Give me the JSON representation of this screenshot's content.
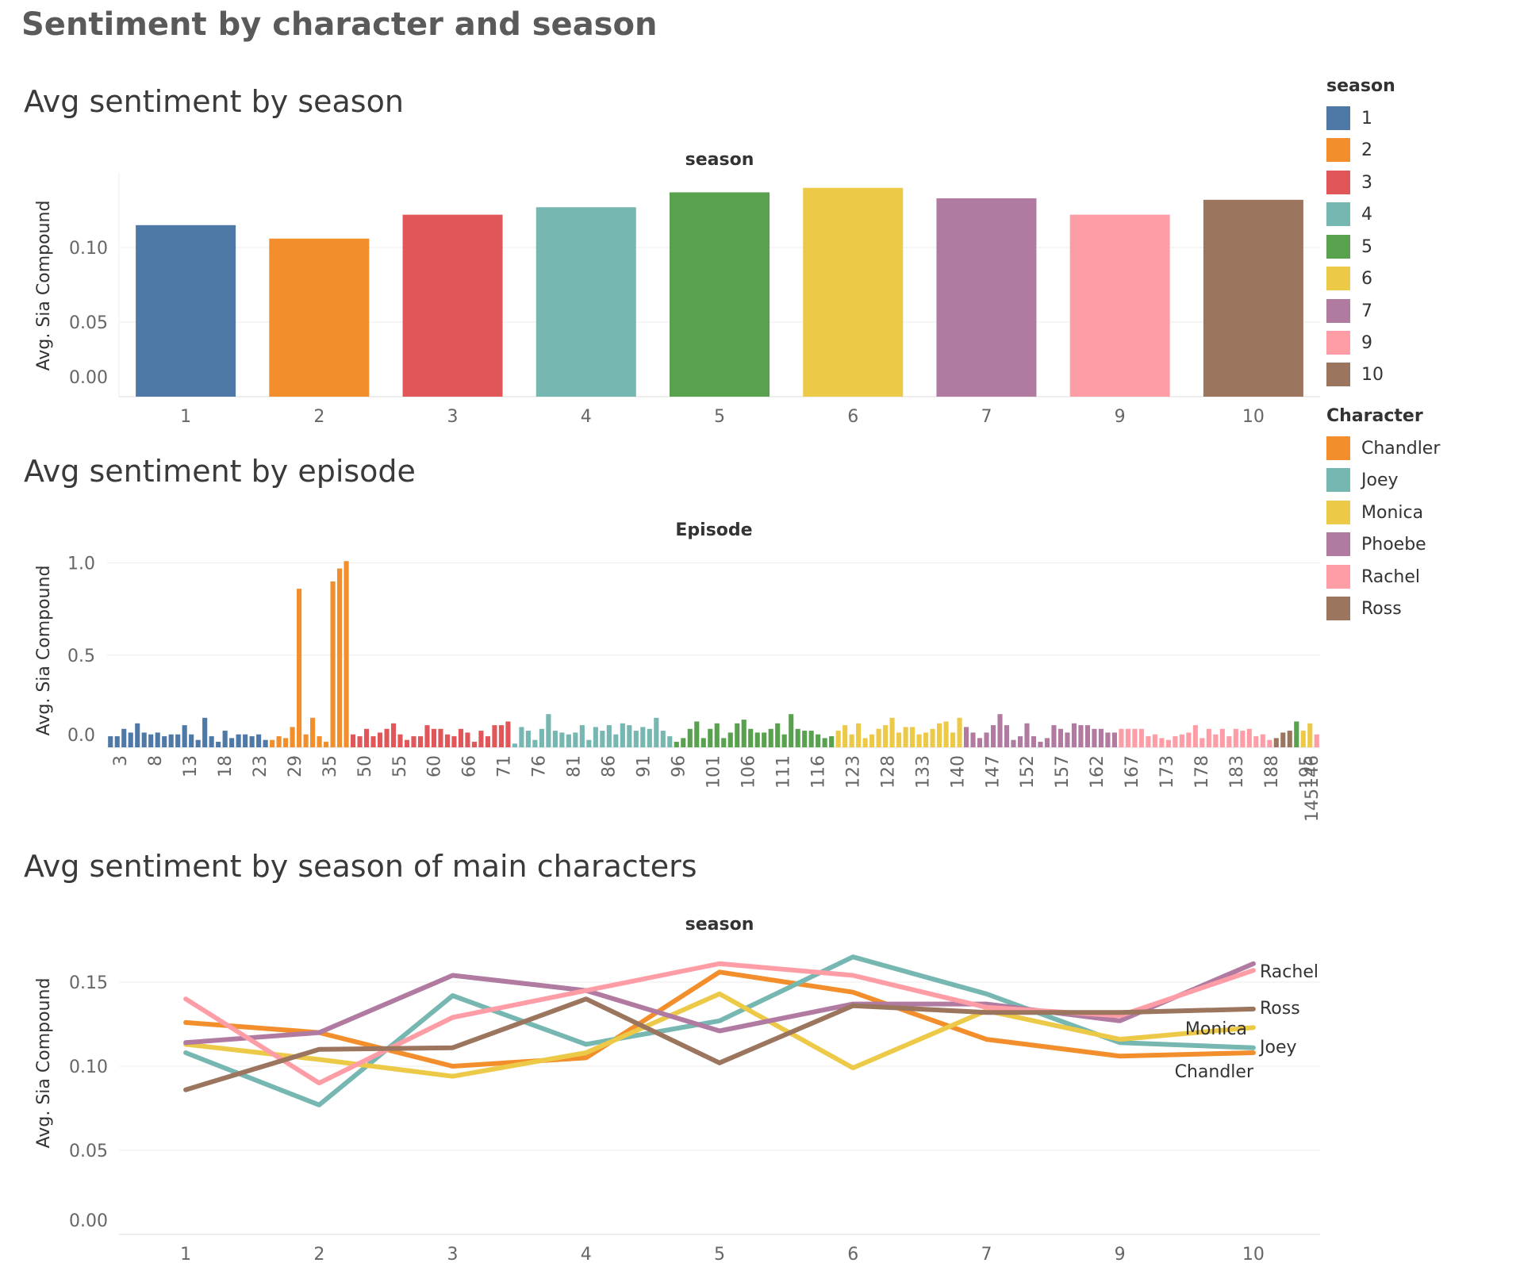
{
  "page": {
    "title": "Sentiment by character and season"
  },
  "legends": {
    "season": {
      "title": "season",
      "items": [
        {
          "label": "1",
          "color": "#4e79a7"
        },
        {
          "label": "2",
          "color": "#f28e2b"
        },
        {
          "label": "3",
          "color": "#e15759"
        },
        {
          "label": "4",
          "color": "#76b7b2"
        },
        {
          "label": "5",
          "color": "#59a14f"
        },
        {
          "label": "6",
          "color": "#edc948"
        },
        {
          "label": "7",
          "color": "#b07aa1"
        },
        {
          "label": "9",
          "color": "#ff9da7"
        },
        {
          "label": "10",
          "color": "#9c755f"
        }
      ]
    },
    "character": {
      "title": "Character",
      "items": [
        {
          "label": "Chandler",
          "color": "#f28e2b"
        },
        {
          "label": "Joey",
          "color": "#76b7b2"
        },
        {
          "label": "Monica",
          "color": "#edc948"
        },
        {
          "label": "Phoebe",
          "color": "#b07aa1"
        },
        {
          "label": "Rachel",
          "color": "#ff9da7"
        },
        {
          "label": "Ross",
          "color": "#9c755f"
        }
      ]
    }
  },
  "chart_data": [
    {
      "type": "bar",
      "title": "Avg sentiment by season",
      "header": "season",
      "ylabel": "Avg. Sia Compound",
      "ylim": [
        0,
        0.15
      ],
      "yticks": [
        "0.00",
        "0.05",
        "0.10"
      ],
      "categories": [
        "1",
        "2",
        "3",
        "4",
        "5",
        "6",
        "7",
        "9",
        "10"
      ],
      "values": [
        0.115,
        0.106,
        0.122,
        0.127,
        0.137,
        0.14,
        0.133,
        0.122,
        0.132
      ],
      "colors": [
        "#4e79a7",
        "#f28e2b",
        "#e15759",
        "#76b7b2",
        "#59a14f",
        "#edc948",
        "#b07aa1",
        "#ff9da7",
        "#9c755f"
      ]
    },
    {
      "type": "bar",
      "title": "Avg sentiment by episode",
      "header": "Episode",
      "ylabel": "Avg. Sia Compound",
      "ylim": [
        0,
        1.05
      ],
      "yticks": [
        "0.0",
        "0.5",
        "1.0"
      ],
      "tick_labels": [
        "3",
        "8",
        "13",
        "18",
        "23",
        "29",
        "35",
        "50",
        "55",
        "60",
        "66",
        "71",
        "76",
        "81",
        "86",
        "91",
        "96",
        "101",
        "106",
        "111",
        "116",
        "123",
        "128",
        "133",
        "140",
        "147",
        "152",
        "157",
        "162",
        "167",
        "173",
        "178",
        "183",
        "188",
        "195",
        "145146"
      ],
      "groups": [
        {
          "season": "1",
          "color": "#4e79a7",
          "values": [
            0.06,
            0.06,
            0.1,
            0.08,
            0.13,
            0.08,
            0.07,
            0.08,
            0.06,
            0.07,
            0.07,
            0.12,
            0.07,
            0.04,
            0.16,
            0.06,
            0.03,
            0.09,
            0.05,
            0.07,
            0.07,
            0.06,
            0.07,
            0.04
          ]
        },
        {
          "season": "2",
          "color": "#f28e2b",
          "values": [
            0.04,
            0.06,
            0.05,
            0.11,
            0.86,
            0.07,
            0.16,
            0.06,
            0.03,
            0.9,
            0.97,
            1.01
          ]
        },
        {
          "season": "3",
          "color": "#e15759",
          "values": [
            0.07,
            0.06,
            0.1,
            0.06,
            0.08,
            0.1,
            0.13,
            0.07,
            0.04,
            0.06,
            0.06,
            0.12,
            0.1,
            0.1,
            0.07,
            0.06,
            0.1,
            0.08,
            0.03,
            0.09,
            0.06,
            0.12,
            0.12,
            0.14
          ]
        },
        {
          "season": "4",
          "color": "#76b7b2",
          "values": [
            0.02,
            0.11,
            0.09,
            0.04,
            0.1,
            0.18,
            0.09,
            0.08,
            0.07,
            0.08,
            0.12,
            0.04,
            0.11,
            0.09,
            0.12,
            0.07,
            0.13,
            0.12,
            0.09,
            0.11,
            0.1,
            0.16,
            0.09,
            0.06
          ]
        },
        {
          "season": "5",
          "color": "#59a14f",
          "values": [
            0.03,
            0.05,
            0.1,
            0.14,
            0.05,
            0.1,
            0.13,
            0.05,
            0.08,
            0.13,
            0.15,
            0.1,
            0.08,
            0.08,
            0.1,
            0.13,
            0.07,
            0.18,
            0.1,
            0.09,
            0.09,
            0.07,
            0.05,
            0.06
          ]
        },
        {
          "season": "6",
          "color": "#edc948",
          "values": [
            0.09,
            0.12,
            0.07,
            0.13,
            0.05,
            0.07,
            0.1,
            0.12,
            0.16,
            0.08,
            0.11,
            0.11,
            0.07,
            0.08,
            0.1,
            0.13,
            0.14,
            0.08,
            0.16
          ]
        },
        {
          "season": "7",
          "color": "#b07aa1",
          "values": [
            0.11,
            0.08,
            0.05,
            0.08,
            0.12,
            0.18,
            0.12,
            0.04,
            0.06,
            0.13,
            0.06,
            0.03,
            0.05,
            0.12,
            0.1,
            0.08,
            0.13,
            0.12,
            0.12,
            0.1,
            0.1,
            0.08,
            0.08
          ]
        },
        {
          "season": "9",
          "color": "#ff9da7",
          "values": [
            0.1,
            0.1,
            0.1,
            0.1,
            0.06,
            0.07,
            0.05,
            0.04,
            0.06,
            0.07,
            0.08,
            0.12,
            0.05,
            0.1,
            0.07,
            0.1,
            0.06,
            0.1,
            0.09,
            0.1,
            0.06,
            0.07,
            0.04
          ]
        },
        {
          "season": "10",
          "color": "#9c755f",
          "values": [
            0.05,
            0.08,
            0.09
          ]
        },
        {
          "season": "5",
          "color": "#59a14f",
          "values": [
            0.14
          ]
        },
        {
          "season": "6",
          "color": "#edc948",
          "values": [
            0.09,
            0.13
          ]
        },
        {
          "season": "9",
          "color": "#ff9da7",
          "values": [
            0.07
          ]
        }
      ]
    },
    {
      "type": "line",
      "title": "Avg sentiment by season of main characters",
      "header": "season",
      "ylabel": "Avg. Sia Compound",
      "ylim": [
        0,
        0.175
      ],
      "yticks": [
        "0.00",
        "0.05",
        "0.10",
        "0.15"
      ],
      "categories": [
        "1",
        "2",
        "3",
        "4",
        "5",
        "6",
        "7",
        "9",
        "10"
      ],
      "series": [
        {
          "name": "Chandler",
          "color": "#f28e2b",
          "values": [
            0.126,
            0.12,
            0.1,
            0.105,
            0.156,
            0.144,
            0.116,
            0.106,
            0.108
          ]
        },
        {
          "name": "Joey",
          "color": "#76b7b2",
          "values": [
            0.108,
            0.077,
            0.142,
            0.113,
            0.127,
            0.165,
            0.143,
            0.114,
            0.111
          ]
        },
        {
          "name": "Monica",
          "color": "#edc948",
          "values": [
            0.113,
            0.104,
            0.094,
            0.108,
            0.143,
            0.099,
            0.133,
            0.116,
            0.123
          ]
        },
        {
          "name": "Phoebe",
          "color": "#b07aa1",
          "values": [
            0.114,
            0.12,
            0.154,
            0.145,
            0.121,
            0.137,
            0.137,
            0.127,
            0.161
          ]
        },
        {
          "name": "Rachel",
          "color": "#ff9da7",
          "values": [
            0.14,
            0.09,
            0.129,
            0.145,
            0.161,
            0.154,
            0.135,
            0.13,
            0.157
          ]
        },
        {
          "name": "Ross",
          "color": "#9c755f",
          "values": [
            0.086,
            0.11,
            0.111,
            0.14,
            0.102,
            0.136,
            0.132,
            0.132,
            0.134
          ]
        }
      ],
      "end_labels": [
        "Rachel",
        "Ross",
        "Monica",
        "Joey",
        "Chandler"
      ]
    }
  ]
}
